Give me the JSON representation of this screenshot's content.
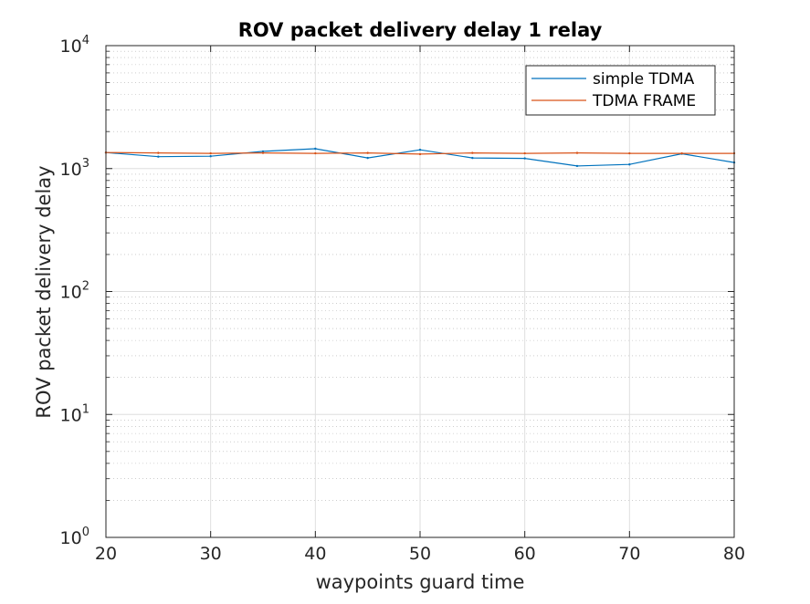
{
  "chart_data": {
    "type": "line",
    "title": "ROV packet delivery delay 1 relay",
    "xlabel": "waypoints guard time",
    "ylabel": "ROV packet delivery delay",
    "xlim": [
      20,
      80
    ],
    "ylim": [
      1,
      10000
    ],
    "yscale": "log",
    "grid": true,
    "legend_position": "top-right",
    "x_ticks": [
      "20",
      "30",
      "40",
      "50",
      "60",
      "70",
      "80"
    ],
    "y_ticks": [
      {
        "base": "10",
        "exp": "0"
      },
      {
        "base": "10",
        "exp": "1"
      },
      {
        "base": "10",
        "exp": "2"
      },
      {
        "base": "10",
        "exp": "3"
      },
      {
        "base": "10",
        "exp": "4"
      }
    ],
    "x": [
      20,
      25,
      30,
      35,
      40,
      45,
      50,
      55,
      60,
      65,
      70,
      75,
      80
    ],
    "series": [
      {
        "name": "simple TDMA",
        "color": "#0072BD",
        "values": [
          1350,
          1250,
          1260,
          1380,
          1450,
          1220,
          1420,
          1220,
          1210,
          1050,
          1080,
          1320,
          1120
        ]
      },
      {
        "name": "TDMA FRAME",
        "color": "#D95319",
        "values": [
          1350,
          1340,
          1330,
          1340,
          1330,
          1340,
          1310,
          1340,
          1330,
          1340,
          1330,
          1330,
          1330
        ]
      }
    ]
  }
}
